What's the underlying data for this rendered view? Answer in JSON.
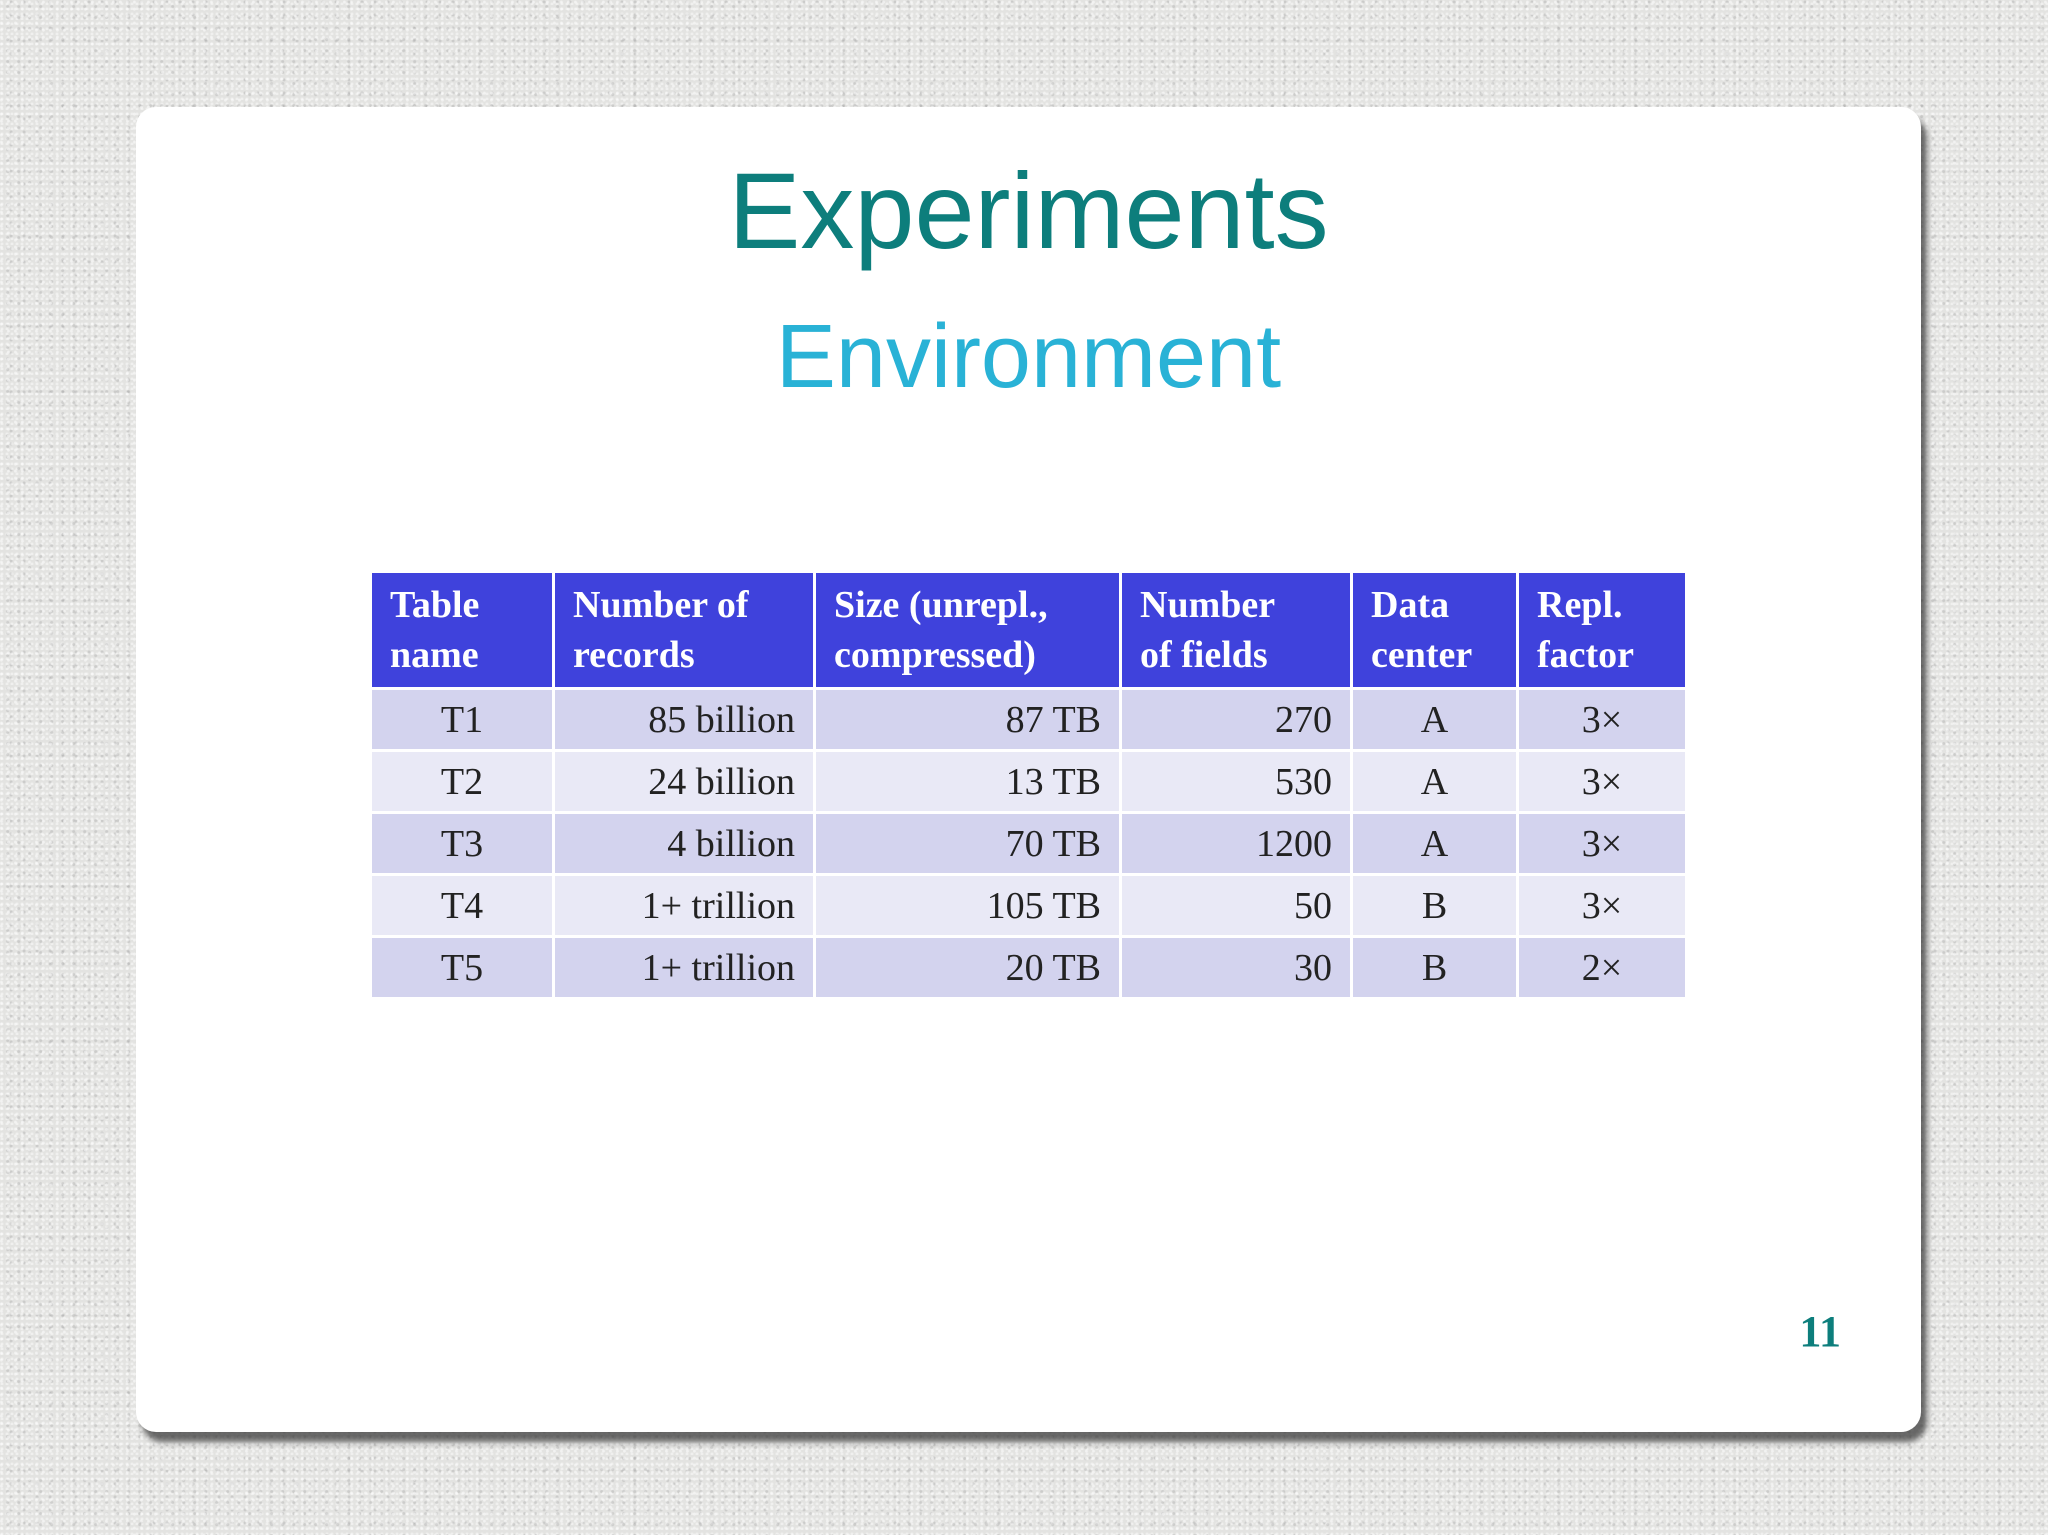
{
  "slide": {
    "title": "Experiments",
    "subtitle": "Environment",
    "page_number": "11"
  },
  "table": {
    "headers": [
      {
        "line1": "Table",
        "line2": "name"
      },
      {
        "line1": "Number of",
        "line2": "records"
      },
      {
        "line1": "Size (unrepl.,",
        "line2": "compressed)"
      },
      {
        "line1": "Number",
        "line2": "of fields"
      },
      {
        "line1": "Data",
        "line2": "center"
      },
      {
        "line1": "Repl.",
        "line2": "factor"
      }
    ],
    "rows": [
      [
        "T1",
        "85 billion",
        "87 TB",
        "270",
        "A",
        "3×"
      ],
      [
        "T2",
        "24 billion",
        "13 TB",
        "530",
        "A",
        "3×"
      ],
      [
        "T3",
        "4 billion",
        "70 TB",
        "1200",
        "A",
        "3×"
      ],
      [
        "T4",
        "1+ trillion",
        "105 TB",
        "50",
        "B",
        "3×"
      ],
      [
        "T5",
        "1+ trillion",
        "20 TB",
        "30",
        "B",
        "2×"
      ]
    ]
  },
  "colors": {
    "title": "#0d7e7c",
    "subtitle": "#29b2d6",
    "header_bg": "#3f42dc",
    "row_odd_bg": "#d3d3ee",
    "row_even_bg": "#e9e9f6"
  }
}
